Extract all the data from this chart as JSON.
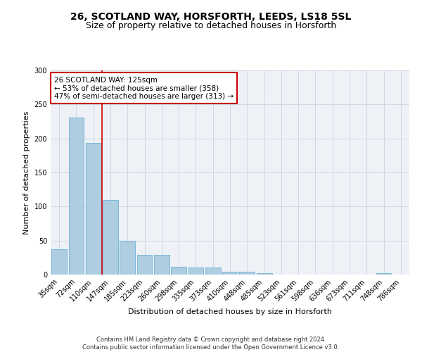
{
  "title1": "26, SCOTLAND WAY, HORSFORTH, LEEDS, LS18 5SL",
  "title2": "Size of property relative to detached houses in Horsforth",
  "xlabel": "Distribution of detached houses by size in Horsforth",
  "ylabel": "Number of detached properties",
  "categories": [
    "35sqm",
    "72sqm",
    "110sqm",
    "147sqm",
    "185sqm",
    "223sqm",
    "260sqm",
    "298sqm",
    "335sqm",
    "373sqm",
    "410sqm",
    "448sqm",
    "485sqm",
    "523sqm",
    "561sqm",
    "598sqm",
    "636sqm",
    "673sqm",
    "711sqm",
    "748sqm",
    "786sqm"
  ],
  "values": [
    37,
    231,
    193,
    110,
    50,
    29,
    29,
    11,
    10,
    10,
    4,
    4,
    2,
    0,
    0,
    0,
    0,
    0,
    0,
    2,
    0
  ],
  "bar_color": "#aecde0",
  "bar_edge_color": "#6aaed6",
  "vline_color": "#cc0000",
  "annotation_text": "26 SCOTLAND WAY: 125sqm\n← 53% of detached houses are smaller (358)\n47% of semi-detached houses are larger (313) →",
  "annotation_box_color": "#ffffff",
  "annotation_box_edge_color": "#cc0000",
  "ylim": [
    0,
    300
  ],
  "yticks": [
    0,
    50,
    100,
    150,
    200,
    250,
    300
  ],
  "grid_color": "#d0d8e4",
  "bg_color": "#eef2f7",
  "footer": "Contains HM Land Registry data © Crown copyright and database right 2024.\nContains public sector information licensed under the Open Government Licence v3.0.",
  "title1_fontsize": 10,
  "title2_fontsize": 9,
  "annotation_fontsize": 7.5,
  "tick_fontsize": 7,
  "label_fontsize": 8,
  "footer_fontsize": 6
}
